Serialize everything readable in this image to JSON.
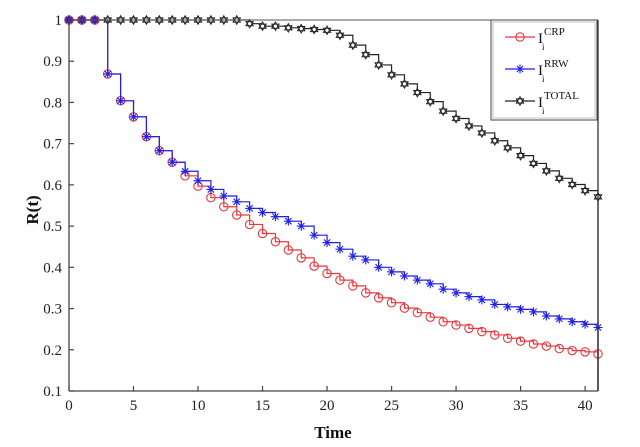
{
  "chart_data": {
    "type": "line",
    "step": true,
    "title": "",
    "xlabel": "Time",
    "ylabel": "R(t)",
    "xlim": [
      0,
      41
    ],
    "ylim": [
      0.1,
      1
    ],
    "xticks": [
      0,
      5,
      10,
      15,
      20,
      25,
      30,
      35,
      40
    ],
    "xtick_labels": [
      "0",
      "5",
      "10",
      "15",
      "20",
      "25",
      "30",
      "35",
      "40"
    ],
    "yticks": [
      0.1,
      0.2,
      0.3,
      0.4,
      0.5,
      0.6,
      0.7,
      0.8,
      0.9,
      1
    ],
    "ytick_labels": [
      "0.1",
      "0.2",
      "0.3",
      "0.4",
      "0.5",
      "0.6",
      "0.7",
      "0.8",
      "0.9",
      "1"
    ],
    "grid": false,
    "legend_position": "top-right",
    "x": [
      0,
      1,
      2,
      3,
      4,
      5,
      6,
      7,
      8,
      9,
      10,
      11,
      12,
      13,
      14,
      15,
      16,
      17,
      18,
      19,
      20,
      21,
      22,
      23,
      24,
      25,
      26,
      27,
      28,
      29,
      30,
      31,
      32,
      33,
      34,
      35,
      36,
      37,
      38,
      39,
      40,
      41
    ],
    "series": [
      {
        "name": "CRP",
        "legend_main": "I",
        "legend_sup": "CRP",
        "legend_sub": "i",
        "color": "#e8383d",
        "marker": "circle",
        "values": [
          1,
          1,
          1,
          0.869,
          0.804,
          0.765,
          0.717,
          0.683,
          0.655,
          0.622,
          0.597,
          0.569,
          0.547,
          0.527,
          0.504,
          0.482,
          0.462,
          0.442,
          0.423,
          0.403,
          0.385,
          0.369,
          0.355,
          0.338,
          0.326,
          0.314,
          0.301,
          0.29,
          0.279,
          0.268,
          0.26,
          0.252,
          0.244,
          0.236,
          0.228,
          0.221,
          0.214,
          0.209,
          0.203,
          0.198,
          0.195,
          0.19
        ]
      },
      {
        "name": "RRW",
        "legend_main": "I",
        "legend_sup": "RRW",
        "legend_sub": "i",
        "color": "#1f1fe6",
        "marker": "asterisk",
        "values": [
          1,
          1,
          1,
          0.869,
          0.804,
          0.765,
          0.717,
          0.683,
          0.655,
          0.633,
          0.61,
          0.589,
          0.573,
          0.559,
          0.543,
          0.533,
          0.523,
          0.512,
          0.5,
          0.478,
          0.46,
          0.444,
          0.427,
          0.418,
          0.4,
          0.389,
          0.379,
          0.369,
          0.36,
          0.347,
          0.338,
          0.329,
          0.321,
          0.31,
          0.304,
          0.298,
          0.292,
          0.282,
          0.275,
          0.268,
          0.262,
          0.254
        ]
      },
      {
        "name": "TOTAL",
        "legend_main": "I",
        "legend_sup": "TOTAL",
        "legend_sub": "i",
        "color": "#222222",
        "marker": "hexagram",
        "values": [
          1,
          1,
          1,
          1,
          1,
          1,
          1,
          1,
          1,
          1,
          1,
          1,
          1,
          1,
          0.991,
          0.985,
          0.985,
          0.981,
          0.979,
          0.977,
          0.975,
          0.963,
          0.939,
          0.916,
          0.891,
          0.867,
          0.845,
          0.824,
          0.802,
          0.779,
          0.761,
          0.743,
          0.726,
          0.707,
          0.69,
          0.671,
          0.652,
          0.634,
          0.616,
          0.601,
          0.586,
          0.571
        ]
      }
    ]
  }
}
